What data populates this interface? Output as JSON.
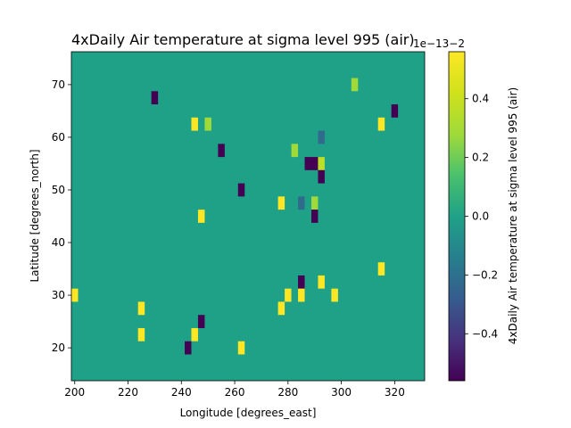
{
  "chart_data": {
    "type": "heatmap",
    "title": "4xDaily Air temperature at sigma level 995 (air)",
    "xlabel": "Longitude [degrees_east]",
    "ylabel": "Latitude [degrees_north]",
    "xlim": [
      198.75,
      331.25
    ],
    "ylim": [
      13.75,
      76.25
    ],
    "xticks": [
      "200",
      "220",
      "240",
      "260",
      "280",
      "300",
      "320"
    ],
    "yticks": [
      "20",
      "30",
      "40",
      "50",
      "60",
      "70"
    ],
    "grid": false,
    "cell_size": [
      2.5,
      2.5
    ],
    "background_value": 0.0,
    "colormap": "viridis",
    "colorbar": {
      "label": "4xDaily Air temperature at sigma level 995 (air)",
      "range": [
        -0.56,
        0.56
      ],
      "ticks": [
        "−0.4",
        "−0.2",
        "0.0",
        "0.2",
        "0.4"
      ],
      "offset_text": "1e−13−2"
    },
    "cells": [
      {
        "lon": 200.0,
        "lat": 30.0,
        "value": 0.56
      },
      {
        "lon": 225.0,
        "lat": 27.5,
        "value": 0.56
      },
      {
        "lon": 225.0,
        "lat": 22.5,
        "value": 0.56
      },
      {
        "lon": 230.0,
        "lat": 67.5,
        "value": -0.56
      },
      {
        "lon": 242.5,
        "lat": 20.0,
        "value": -0.56
      },
      {
        "lon": 245.0,
        "lat": 22.5,
        "value": 0.56
      },
      {
        "lon": 245.0,
        "lat": 62.5,
        "value": 0.56
      },
      {
        "lon": 247.5,
        "lat": 45.0,
        "value": 0.56
      },
      {
        "lon": 247.5,
        "lat": 25.0,
        "value": -0.56
      },
      {
        "lon": 250.0,
        "lat": 62.5,
        "value": 0.28
      },
      {
        "lon": 255.0,
        "lat": 57.5,
        "value": -0.56
      },
      {
        "lon": 262.5,
        "lat": 50.0,
        "value": -0.56
      },
      {
        "lon": 262.5,
        "lat": 20.0,
        "value": 0.56
      },
      {
        "lon": 277.5,
        "lat": 47.5,
        "value": 0.56
      },
      {
        "lon": 277.5,
        "lat": 27.5,
        "value": 0.56
      },
      {
        "lon": 280.0,
        "lat": 30.0,
        "value": 0.56
      },
      {
        "lon": 282.5,
        "lat": 57.5,
        "value": 0.28
      },
      {
        "lon": 285.0,
        "lat": 47.5,
        "value": -0.22
      },
      {
        "lon": 285.0,
        "lat": 32.5,
        "value": -0.56
      },
      {
        "lon": 285.0,
        "lat": 30.0,
        "value": 0.56
      },
      {
        "lon": 287.5,
        "lat": 55.0,
        "value": -0.56
      },
      {
        "lon": 290.0,
        "lat": 55.0,
        "value": -0.56
      },
      {
        "lon": 290.0,
        "lat": 47.5,
        "value": 0.28
      },
      {
        "lon": 290.0,
        "lat": 45.0,
        "value": -0.56
      },
      {
        "lon": 292.5,
        "lat": 60.0,
        "value": -0.22
      },
      {
        "lon": 292.5,
        "lat": 55.0,
        "value": 0.36
      },
      {
        "lon": 292.5,
        "lat": 52.5,
        "value": -0.56
      },
      {
        "lon": 292.5,
        "lat": 32.5,
        "value": 0.56
      },
      {
        "lon": 297.5,
        "lat": 30.0,
        "value": 0.56
      },
      {
        "lon": 305.0,
        "lat": 70.0,
        "value": 0.28
      },
      {
        "lon": 315.0,
        "lat": 62.5,
        "value": 0.56
      },
      {
        "lon": 315.0,
        "lat": 35.0,
        "value": 0.56
      },
      {
        "lon": 320.0,
        "lat": 65.0,
        "value": -0.56
      }
    ]
  }
}
